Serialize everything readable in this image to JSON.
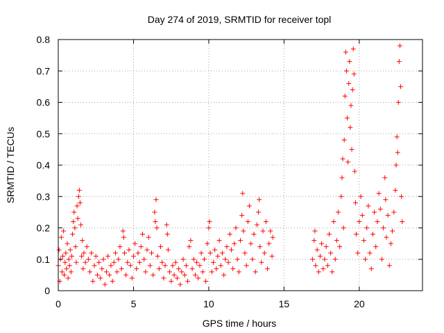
{
  "chart_data": {
    "type": "scatter",
    "title": "Day 274 of 2019, SRMTID for receiver topl",
    "xlabel": "GPS time / hours",
    "ylabel": "SRMTID / TECUs",
    "xlim": [
      0,
      24.2
    ],
    "ylim": [
      0,
      0.8
    ],
    "x_ticks": [
      0,
      5,
      10,
      15,
      20
    ],
    "x_tick_labels": [
      "0",
      "5",
      "10",
      "15",
      "20"
    ],
    "y_ticks": [
      0,
      0.1,
      0.2,
      0.3,
      0.4,
      0.5,
      0.6,
      0.7,
      0.8
    ],
    "y_tick_labels": [
      "0",
      "0.1",
      "0.2",
      "0.3",
      "0.4",
      "0.5",
      "0.6",
      "0.7",
      "0.8"
    ],
    "grid": true,
    "marker": "+",
    "series_color": "#ff0000",
    "series": [
      {
        "name": "SRMTID",
        "points": [
          [
            0.0,
            0.08
          ],
          [
            0.05,
            0.13
          ],
          [
            0.1,
            0.03
          ],
          [
            0.15,
            0.1
          ],
          [
            0.2,
            0.17
          ],
          [
            0.25,
            0.06
          ],
          [
            0.3,
            0.11
          ],
          [
            0.35,
            0.19
          ],
          [
            0.4,
            0.05
          ],
          [
            0.45,
            0.09
          ],
          [
            0.5,
            0.12
          ],
          [
            0.55,
            0.07
          ],
          [
            0.6,
            0.15
          ],
          [
            0.65,
            0.04
          ],
          [
            0.7,
            0.1
          ],
          [
            0.75,
            0.08
          ],
          [
            0.8,
            0.13
          ],
          [
            0.85,
            0.06
          ],
          [
            0.9,
            0.11
          ],
          [
            0.95,
            0.18
          ],
          [
            1.0,
            0.22
          ],
          [
            1.05,
            0.25
          ],
          [
            1.1,
            0.2
          ],
          [
            1.15,
            0.14
          ],
          [
            1.2,
            0.09
          ],
          [
            1.25,
            0.27
          ],
          [
            1.3,
            0.23
          ],
          [
            1.35,
            0.3
          ],
          [
            1.4,
            0.32
          ],
          [
            1.45,
            0.28
          ],
          [
            1.5,
            0.21
          ],
          [
            1.55,
            0.11
          ],
          [
            1.6,
            0.16
          ],
          [
            1.65,
            0.07
          ],
          [
            1.7,
            0.12
          ],
          [
            1.8,
            0.09
          ],
          [
            1.9,
            0.14
          ],
          [
            2.0,
            0.1
          ],
          [
            2.1,
            0.06
          ],
          [
            2.2,
            0.12
          ],
          [
            2.3,
            0.03
          ],
          [
            2.4,
            0.08
          ],
          [
            2.5,
            0.11
          ],
          [
            2.6,
            0.05
          ],
          [
            2.7,
            0.09
          ],
          [
            2.8,
            0.04
          ],
          [
            2.9,
            0.07
          ],
          [
            3.0,
            0.1
          ],
          [
            3.1,
            0.02
          ],
          [
            3.2,
            0.06
          ],
          [
            3.3,
            0.11
          ],
          [
            3.4,
            0.05
          ],
          [
            3.5,
            0.08
          ],
          [
            3.6,
            0.03
          ],
          [
            3.7,
            0.09
          ],
          [
            3.8,
            0.12
          ],
          [
            3.9,
            0.06
          ],
          [
            4.0,
            0.1
          ],
          [
            4.1,
            0.14
          ],
          [
            4.2,
            0.07
          ],
          [
            4.3,
            0.19
          ],
          [
            4.35,
            0.17
          ],
          [
            4.4,
            0.12
          ],
          [
            4.5,
            0.05
          ],
          [
            4.6,
            0.09
          ],
          [
            4.7,
            0.13
          ],
          [
            4.8,
            0.08
          ],
          [
            4.9,
            0.04
          ],
          [
            5.0,
            0.11
          ],
          [
            5.1,
            0.15
          ],
          [
            5.2,
            0.07
          ],
          [
            5.3,
            0.12
          ],
          [
            5.4,
            0.09
          ],
          [
            5.5,
            0.14
          ],
          [
            5.6,
            0.18
          ],
          [
            5.7,
            0.1
          ],
          [
            5.8,
            0.06
          ],
          [
            5.9,
            0.13
          ],
          [
            6.0,
            0.17
          ],
          [
            6.1,
            0.08
          ],
          [
            6.2,
            0.12
          ],
          [
            6.3,
            0.05
          ],
          [
            6.4,
            0.25
          ],
          [
            6.45,
            0.22
          ],
          [
            6.5,
            0.29
          ],
          [
            6.55,
            0.2
          ],
          [
            6.6,
            0.11
          ],
          [
            6.7,
            0.07
          ],
          [
            6.8,
            0.14
          ],
          [
            6.9,
            0.09
          ],
          [
            7.0,
            0.04
          ],
          [
            7.1,
            0.08
          ],
          [
            7.2,
            0.21
          ],
          [
            7.25,
            0.18
          ],
          [
            7.3,
            0.13
          ],
          [
            7.4,
            0.06
          ],
          [
            7.5,
            0.03
          ],
          [
            7.6,
            0.08
          ],
          [
            7.7,
            0.05
          ],
          [
            7.8,
            0.09
          ],
          [
            7.9,
            0.04
          ],
          [
            8.0,
            0.07
          ],
          [
            8.1,
            0.02
          ],
          [
            8.2,
            0.06
          ],
          [
            8.3,
            0.1
          ],
          [
            8.4,
            0.05
          ],
          [
            8.5,
            0.08
          ],
          [
            8.6,
            0.03
          ],
          [
            8.7,
            0.14
          ],
          [
            8.8,
            0.16
          ],
          [
            8.9,
            0.07
          ],
          [
            9.0,
            0.1
          ],
          [
            9.1,
            0.05
          ],
          [
            9.2,
            0.09
          ],
          [
            9.3,
            0.04
          ],
          [
            9.4,
            0.08
          ],
          [
            9.5,
            0.12
          ],
          [
            9.6,
            0.06
          ],
          [
            9.7,
            0.1
          ],
          [
            9.8,
            0.03
          ],
          [
            9.9,
            0.15
          ],
          [
            10.0,
            0.2
          ],
          [
            10.05,
            0.22
          ],
          [
            10.1,
            0.12
          ],
          [
            10.2,
            0.06
          ],
          [
            10.3,
            0.09
          ],
          [
            10.4,
            0.13
          ],
          [
            10.5,
            0.07
          ],
          [
            10.6,
            0.11
          ],
          [
            10.7,
            0.16
          ],
          [
            10.8,
            0.08
          ],
          [
            10.9,
            0.12
          ],
          [
            11.0,
            0.05
          ],
          [
            11.1,
            0.1
          ],
          [
            11.2,
            0.14
          ],
          [
            11.3,
            0.09
          ],
          [
            11.4,
            0.18
          ],
          [
            11.5,
            0.13
          ],
          [
            11.6,
            0.07
          ],
          [
            11.7,
            0.15
          ],
          [
            11.8,
            0.2
          ],
          [
            11.9,
            0.1
          ],
          [
            12.0,
            0.06
          ],
          [
            12.1,
            0.16
          ],
          [
            12.2,
            0.24
          ],
          [
            12.25,
            0.31
          ],
          [
            12.3,
            0.19
          ],
          [
            12.4,
            0.12
          ],
          [
            12.5,
            0.08
          ],
          [
            12.6,
            0.22
          ],
          [
            12.7,
            0.27
          ],
          [
            12.8,
            0.15
          ],
          [
            12.9,
            0.1
          ],
          [
            13.0,
            0.18
          ],
          [
            13.1,
            0.06
          ],
          [
            13.2,
            0.21
          ],
          [
            13.3,
            0.25
          ],
          [
            13.35,
            0.29
          ],
          [
            13.4,
            0.14
          ],
          [
            13.5,
            0.09
          ],
          [
            13.6,
            0.19
          ],
          [
            13.7,
            0.12
          ],
          [
            13.8,
            0.22
          ],
          [
            13.9,
            0.07
          ],
          [
            14.0,
            0.15
          ],
          [
            14.1,
            0.19
          ],
          [
            14.2,
            0.11
          ],
          [
            14.25,
            0.17
          ],
          [
            16.9,
            0.1
          ],
          [
            17.0,
            0.16
          ],
          [
            17.05,
            0.19
          ],
          [
            17.1,
            0.08
          ],
          [
            17.2,
            0.13
          ],
          [
            17.3,
            0.06
          ],
          [
            17.4,
            0.11
          ],
          [
            17.5,
            0.15
          ],
          [
            17.6,
            0.07
          ],
          [
            17.7,
            0.1
          ],
          [
            17.8,
            0.14
          ],
          [
            17.9,
            0.08
          ],
          [
            18.0,
            0.18
          ],
          [
            18.1,
            0.12
          ],
          [
            18.2,
            0.06
          ],
          [
            18.3,
            0.22
          ],
          [
            18.4,
            0.1
          ],
          [
            18.5,
            0.16
          ],
          [
            18.6,
            0.25
          ],
          [
            18.7,
            0.14
          ],
          [
            18.8,
            0.3
          ],
          [
            18.85,
            0.36
          ],
          [
            18.9,
            0.42
          ],
          [
            18.95,
            0.2
          ],
          [
            19.0,
            0.48
          ],
          [
            19.05,
            0.62
          ],
          [
            19.1,
            0.76
          ],
          [
            19.15,
            0.7
          ],
          [
            19.2,
            0.55
          ],
          [
            19.25,
            0.41
          ],
          [
            19.3,
            0.66
          ],
          [
            19.35,
            0.73
          ],
          [
            19.4,
            0.52
          ],
          [
            19.45,
            0.59
          ],
          [
            19.5,
            0.45
          ],
          [
            19.55,
            0.64
          ],
          [
            19.6,
            0.77
          ],
          [
            19.65,
            0.69
          ],
          [
            19.7,
            0.38
          ],
          [
            19.75,
            0.28
          ],
          [
            19.8,
            0.18
          ],
          [
            19.9,
            0.12
          ],
          [
            20.0,
            0.22
          ],
          [
            20.1,
            0.3
          ],
          [
            20.2,
            0.24
          ],
          [
            20.3,
            0.16
          ],
          [
            20.4,
            0.1
          ],
          [
            20.5,
            0.2
          ],
          [
            20.6,
            0.27
          ],
          [
            20.7,
            0.12
          ],
          [
            20.8,
            0.07
          ],
          [
            20.9,
            0.18
          ],
          [
            21.0,
            0.25
          ],
          [
            21.1,
            0.14
          ],
          [
            21.2,
            0.22
          ],
          [
            21.3,
            0.31
          ],
          [
            21.4,
            0.26
          ],
          [
            21.5,
            0.1
          ],
          [
            21.6,
            0.2
          ],
          [
            21.7,
            0.36
          ],
          [
            21.75,
            0.29
          ],
          [
            21.8,
            0.17
          ],
          [
            21.9,
            0.24
          ],
          [
            22.0,
            0.08
          ],
          [
            22.1,
            0.15
          ],
          [
            22.2,
            0.19
          ],
          [
            22.3,
            0.25
          ],
          [
            22.4,
            0.32
          ],
          [
            22.45,
            0.4
          ],
          [
            22.5,
            0.49
          ],
          [
            22.55,
            0.44
          ],
          [
            22.6,
            0.6
          ],
          [
            22.65,
            0.73
          ],
          [
            22.7,
            0.78
          ],
          [
            22.75,
            0.65
          ],
          [
            22.8,
            0.3
          ],
          [
            22.85,
            0.22
          ]
        ]
      }
    ]
  }
}
